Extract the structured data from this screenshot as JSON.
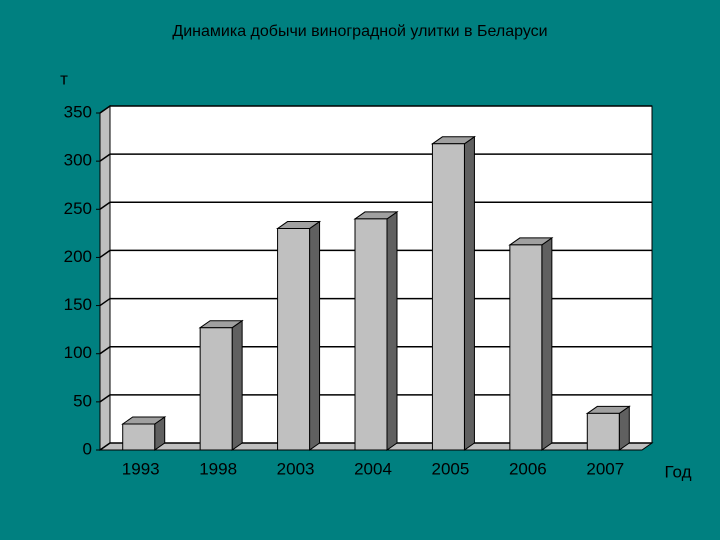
{
  "chart_data": {
    "type": "bar3d",
    "title": "Динамика добычи виноградной улитки в Беларуси",
    "y_label": "т",
    "x_label": "Год",
    "categories": [
      "1993",
      "1998",
      "2003",
      "2004",
      "2005",
      "2006",
      "2007"
    ],
    "values": [
      27,
      127,
      230,
      240,
      318,
      213,
      38
    ],
    "color": "#c0c0c0",
    "ylim": [
      0,
      350
    ],
    "yticks": [
      0,
      50,
      100,
      150,
      200,
      250,
      300,
      350
    ],
    "grid": true
  }
}
